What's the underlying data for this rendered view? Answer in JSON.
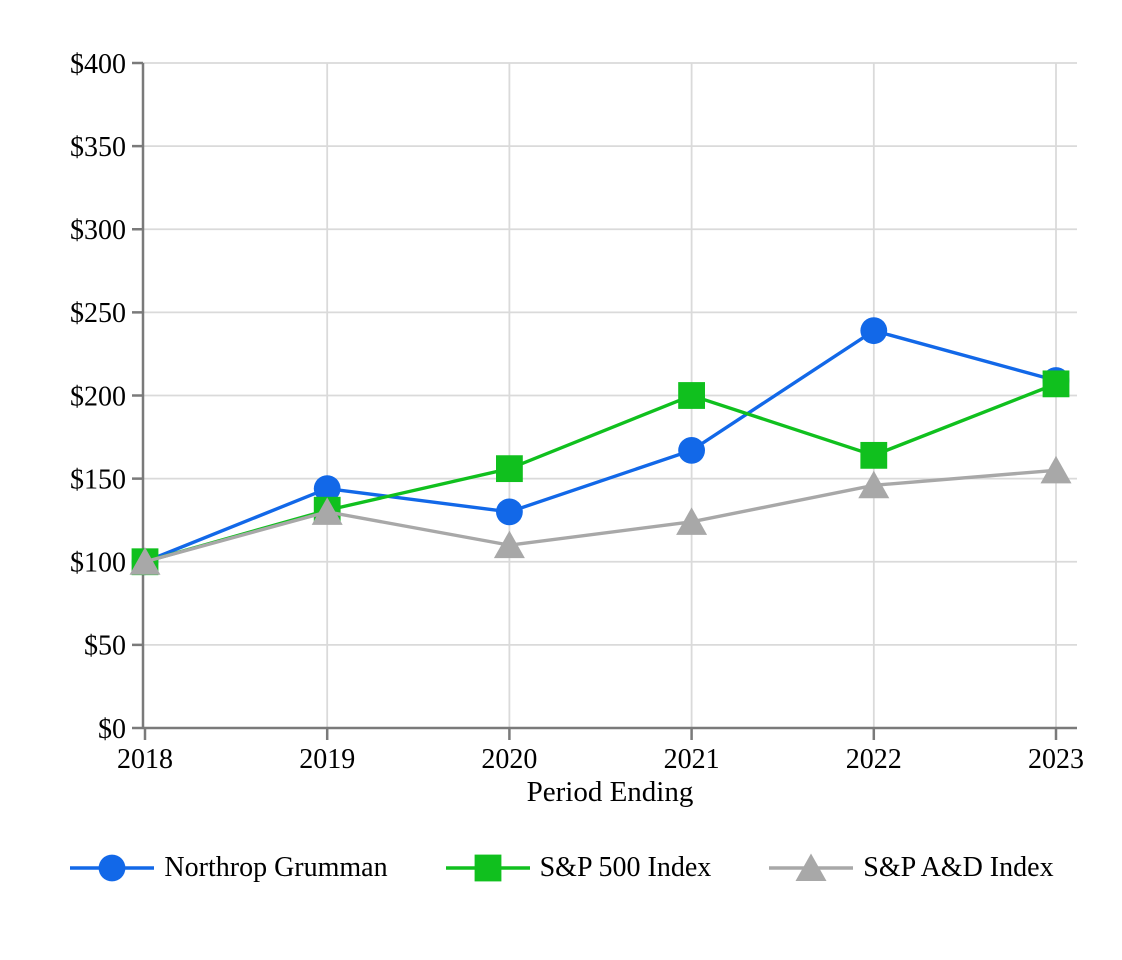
{
  "chart_data": {
    "type": "line",
    "x": [
      "2018",
      "2019",
      "2020",
      "2021",
      "2022",
      "2023"
    ],
    "series": [
      {
        "name": "Northrop Grumman",
        "marker": "circle",
        "color": "#1268E8",
        "values": [
          100,
          144,
          130,
          167,
          239,
          209
        ]
      },
      {
        "name": "S&P 500 Index",
        "marker": "square",
        "color": "#10C01E",
        "values": [
          100,
          131,
          156,
          200,
          164,
          207
        ]
      },
      {
        "name": "S&P A&D Index",
        "marker": "triangle",
        "color": "#A8A8A8",
        "values": [
          100,
          130,
          110,
          124,
          146,
          155
        ]
      }
    ],
    "title": "",
    "xlabel": "Period Ending",
    "ylabel": "",
    "ylim": [
      0,
      400
    ],
    "ytick_step": 50,
    "ytick_prefix": "$",
    "grid": true,
    "legend_position": "bottom"
  },
  "style": {
    "grid_color": "#DADADA",
    "axis_color": "#7A7A7A",
    "text_color": "#000000",
    "background": "#FFFFFF"
  }
}
